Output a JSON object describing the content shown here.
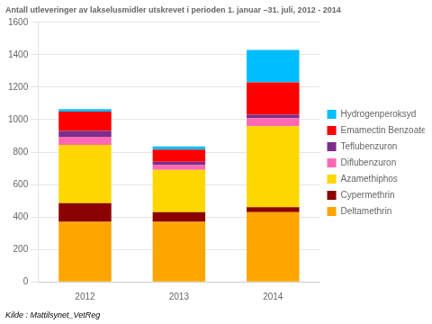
{
  "chart_data": {
    "type": "bar",
    "title": "Antall utleveringer av lakselusmidler utskrevet i perioden 1. januar –31. juli, 2012 - 2014",
    "annotations": [
      "Kilde : Mattilsynet_VetReg"
    ],
    "categories": [
      "2012",
      "2013",
      "2014"
    ],
    "series": [
      {
        "name": "Deltamethrin",
        "color": "#FFA500",
        "values": [
          370,
          370,
          430
        ]
      },
      {
        "name": "Cypermethrin",
        "color": "#8B0000",
        "values": [
          115,
          60,
          30
        ]
      },
      {
        "name": "Azamethiphos",
        "color": "#FFD700",
        "values": [
          360,
          260,
          500
        ]
      },
      {
        "name": "Diflubenzuron",
        "color": "#FF69B4",
        "values": [
          50,
          30,
          50
        ]
      },
      {
        "name": "Teflubenzuron",
        "color": "#7B2D8B",
        "values": [
          35,
          20,
          20
        ]
      },
      {
        "name": "Emamectin Benzoate",
        "color": "#FF0000",
        "values": [
          120,
          75,
          200
        ]
      },
      {
        "name": "Hydrogenperoksyd",
        "color": "#00BFFF",
        "values": [
          15,
          20,
          200
        ]
      }
    ],
    "stacked": true,
    "ylim": [
      0,
      1600
    ],
    "yticks": [
      0,
      200,
      400,
      600,
      800,
      1000,
      1200,
      1400,
      1600
    ],
    "grid": true,
    "legend": "right"
  }
}
